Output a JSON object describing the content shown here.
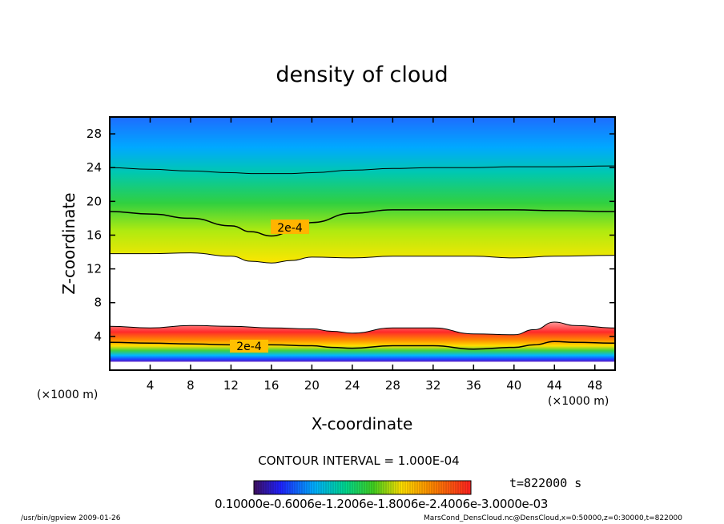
{
  "chart_data": {
    "type": "heatmap",
    "title": "density of cloud",
    "xlabel": "X-coordinate",
    "ylabel": "Z-coordinate",
    "x_unit": "(×1000 m)",
    "y_unit": "(×1000 m)",
    "xlim": [
      0,
      50
    ],
    "ylim": [
      0,
      30
    ],
    "x_ticks": [
      4,
      8,
      12,
      16,
      20,
      24,
      28,
      32,
      36,
      40,
      44,
      48
    ],
    "y_ticks": [
      4,
      8,
      12,
      16,
      20,
      24,
      28
    ],
    "contour_interval": "CONTOUR INTERVAL = 1.000E-04",
    "contour_labels": [
      "2e-4",
      "2e-4"
    ],
    "upper_layer": {
      "x": [
        0,
        4,
        8,
        12,
        14,
        16,
        18,
        20,
        24,
        28,
        32,
        36,
        40,
        44,
        50
      ],
      "bottom": [
        13.8,
        13.8,
        13.9,
        13.5,
        12.9,
        12.7,
        13.0,
        13.4,
        13.3,
        13.5,
        13.5,
        13.5,
        13.3,
        13.5,
        13.6
      ],
      "contour_2e4": [
        18.8,
        18.5,
        18.0,
        17.1,
        16.4,
        15.9,
        16.4,
        17.5,
        18.6,
        19.0,
        19.0,
        19.0,
        19.0,
        18.9,
        18.8
      ],
      "top_fade": [
        24.0,
        23.8,
        23.6,
        23.4,
        23.3,
        23.3,
        23.3,
        23.4,
        23.7,
        23.9,
        24.0,
        24.0,
        24.1,
        24.1,
        24.2
      ]
    },
    "lower_layer": {
      "x": [
        0,
        4,
        8,
        12,
        16,
        20,
        22,
        24,
        28,
        32,
        36,
        40,
        42,
        44,
        46,
        50
      ],
      "top": [
        5.2,
        5.0,
        5.3,
        5.2,
        5.0,
        4.9,
        4.6,
        4.4,
        5.0,
        5.0,
        4.3,
        4.2,
        4.8,
        5.7,
        5.3,
        5.0
      ],
      "contour_2e4": [
        3.3,
        3.2,
        3.1,
        3.0,
        3.0,
        2.9,
        2.7,
        2.6,
        2.9,
        2.9,
        2.5,
        2.7,
        3.0,
        3.4,
        3.3,
        3.2
      ],
      "bottom": [
        1.0,
        1.0,
        1.0,
        1.0,
        1.0,
        1.0,
        1.0,
        1.0,
        1.0,
        1.0,
        1.0,
        1.0,
        1.0,
        1.0,
        1.0,
        1.0
      ]
    },
    "colorbar": {
      "labels_text": "0.10000e-0.6006e-1.2006e-1.8006e-2.4006e-3.0000e-03",
      "min": 0.0001,
      "max": 0.0003
    },
    "colors": {
      "low": "#1a1aff",
      "mid": "#28c828",
      "high": "#ff1e1e",
      "yellow": "#ffe600",
      "cyan": "#00c8ff"
    }
  },
  "footer": {
    "left": "/usr/bin/gpview   2009-01-26",
    "right": "MarsCond_DensCloud.nc@DensCloud,x=0:50000,z=0:30000,t=822000",
    "time": "t=822000  s"
  }
}
